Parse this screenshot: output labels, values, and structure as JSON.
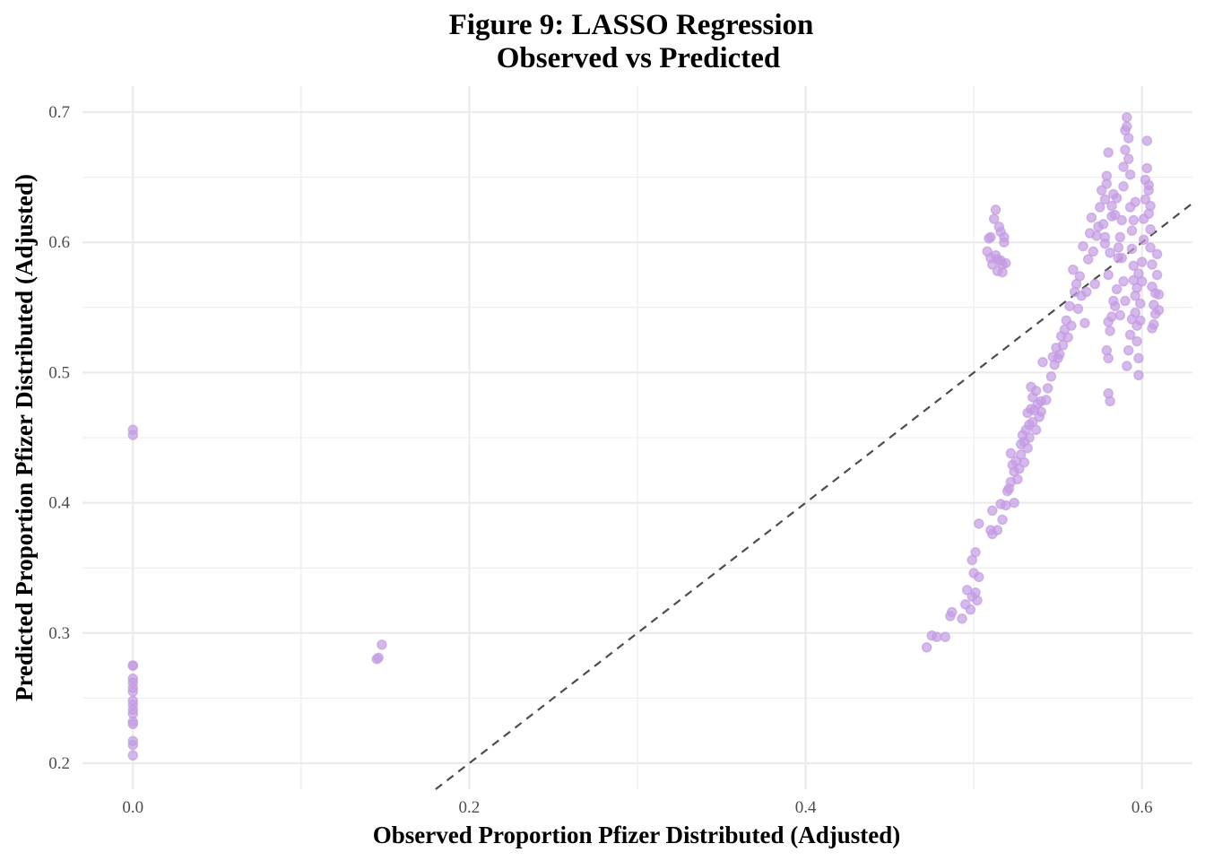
{
  "chart_data": {
    "type": "scatter",
    "title": "Figure 9: LASSO Regression",
    "subtitle": "Observed vs Predicted",
    "xlabel": "Observed Proportion Pfizer Distributed (Adjusted)",
    "ylabel": "Predicted Proportion Pfizer Distributed (Adjusted)",
    "xlim": [
      -0.03,
      0.63
    ],
    "ylim": [
      0.18,
      0.72
    ],
    "x_ticks": [
      0.0,
      0.2,
      0.4,
      0.6
    ],
    "x_tick_labels": [
      "0.0",
      "0.2",
      "0.4",
      "0.6"
    ],
    "y_ticks": [
      0.2,
      0.3,
      0.4,
      0.5,
      0.6,
      0.7
    ],
    "y_tick_labels": [
      "0.2",
      "0.3",
      "0.4",
      "0.5",
      "0.6",
      "0.7"
    ],
    "grid": true,
    "legend": "none",
    "reference_line": {
      "type": "y=x",
      "style": "dashed",
      "color": "#4d4d4d"
    },
    "point_color": "#c39be3",
    "point_opacity": 0.7,
    "points": [
      [
        0.0,
        0.456
      ],
      [
        0.0,
        0.452
      ],
      [
        0.0,
        0.275
      ],
      [
        0.0,
        0.275
      ],
      [
        0.0,
        0.265
      ],
      [
        0.0,
        0.262
      ],
      [
        0.0,
        0.258
      ],
      [
        0.0,
        0.255
      ],
      [
        0.0,
        0.248
      ],
      [
        0.0,
        0.245
      ],
      [
        0.0,
        0.241
      ],
      [
        0.0,
        0.238
      ],
      [
        0.0,
        0.232
      ],
      [
        0.0,
        0.23
      ],
      [
        0.0,
        0.217
      ],
      [
        0.0,
        0.214
      ],
      [
        0.0,
        0.206
      ],
      [
        0.145,
        0.28
      ],
      [
        0.146,
        0.281
      ],
      [
        0.148,
        0.291
      ],
      [
        0.472,
        0.289
      ],
      [
        0.475,
        0.298
      ],
      [
        0.478,
        0.297
      ],
      [
        0.483,
        0.297
      ],
      [
        0.486,
        0.313
      ],
      [
        0.487,
        0.316
      ],
      [
        0.493,
        0.311
      ],
      [
        0.495,
        0.322
      ],
      [
        0.496,
        0.333
      ],
      [
        0.498,
        0.318
      ],
      [
        0.499,
        0.328
      ],
      [
        0.5,
        0.346
      ],
      [
        0.501,
        0.331
      ],
      [
        0.502,
        0.325
      ],
      [
        0.503,
        0.343
      ],
      [
        0.499,
        0.356
      ],
      [
        0.501,
        0.362
      ],
      [
        0.503,
        0.384
      ],
      [
        0.51,
        0.379
      ],
      [
        0.511,
        0.376
      ],
      [
        0.511,
        0.394
      ],
      [
        0.514,
        0.379
      ],
      [
        0.516,
        0.399
      ],
      [
        0.517,
        0.387
      ],
      [
        0.519,
        0.398
      ],
      [
        0.52,
        0.409
      ],
      [
        0.521,
        0.411
      ],
      [
        0.522,
        0.416
      ],
      [
        0.523,
        0.429
      ],
      [
        0.524,
        0.4
      ],
      [
        0.522,
        0.438
      ],
      [
        0.524,
        0.424
      ],
      [
        0.525,
        0.432
      ],
      [
        0.526,
        0.418
      ],
      [
        0.527,
        0.426
      ],
      [
        0.528,
        0.445
      ],
      [
        0.528,
        0.437
      ],
      [
        0.529,
        0.452
      ],
      [
        0.53,
        0.431
      ],
      [
        0.53,
        0.447
      ],
      [
        0.531,
        0.456
      ],
      [
        0.532,
        0.442
      ],
      [
        0.532,
        0.469
      ],
      [
        0.533,
        0.45
      ],
      [
        0.533,
        0.46
      ],
      [
        0.534,
        0.472
      ],
      [
        0.534,
        0.489
      ],
      [
        0.535,
        0.462
      ],
      [
        0.535,
        0.481
      ],
      [
        0.536,
        0.471
      ],
      [
        0.537,
        0.456
      ],
      [
        0.537,
        0.486
      ],
      [
        0.538,
        0.476
      ],
      [
        0.539,
        0.466
      ],
      [
        0.54,
        0.478
      ],
      [
        0.54,
        0.47
      ],
      [
        0.541,
        0.508
      ],
      [
        0.543,
        0.479
      ],
      [
        0.544,
        0.488
      ],
      [
        0.546,
        0.497
      ],
      [
        0.547,
        0.512
      ],
      [
        0.548,
        0.506
      ],
      [
        0.549,
        0.519
      ],
      [
        0.55,
        0.511
      ],
      [
        0.551,
        0.514
      ],
      [
        0.552,
        0.528
      ],
      [
        0.553,
        0.521
      ],
      [
        0.554,
        0.533
      ],
      [
        0.555,
        0.54
      ],
      [
        0.556,
        0.527
      ],
      [
        0.557,
        0.551
      ],
      [
        0.558,
        0.536
      ],
      [
        0.559,
        0.579
      ],
      [
        0.56,
        0.562
      ],
      [
        0.561,
        0.568
      ],
      [
        0.562,
        0.549
      ],
      [
        0.563,
        0.574
      ],
      [
        0.564,
        0.559
      ],
      [
        0.565,
        0.597
      ],
      [
        0.566,
        0.538
      ],
      [
        0.567,
        0.562
      ],
      [
        0.568,
        0.587
      ],
      [
        0.569,
        0.607
      ],
      [
        0.57,
        0.619
      ],
      [
        0.571,
        0.593
      ],
      [
        0.572,
        0.568
      ],
      [
        0.573,
        0.605
      ],
      [
        0.574,
        0.612
      ],
      [
        0.575,
        0.627
      ],
      [
        0.576,
        0.64
      ],
      [
        0.577,
        0.614
      ],
      [
        0.578,
        0.633
      ],
      [
        0.578,
        0.599
      ],
      [
        0.579,
        0.645
      ],
      [
        0.579,
        0.651
      ],
      [
        0.58,
        0.669
      ],
      [
        0.58,
        0.575
      ],
      [
        0.58,
        0.539
      ],
      [
        0.58,
        0.511
      ],
      [
        0.58,
        0.484
      ],
      [
        0.581,
        0.478
      ],
      [
        0.581,
        0.592
      ],
      [
        0.582,
        0.62
      ],
      [
        0.582,
        0.628
      ],
      [
        0.583,
        0.637
      ],
      [
        0.584,
        0.551
      ],
      [
        0.585,
        0.564
      ],
      [
        0.586,
        0.588
      ],
      [
        0.587,
        0.604
      ],
      [
        0.588,
        0.617
      ],
      [
        0.589,
        0.643
      ],
      [
        0.589,
        0.658
      ],
      [
        0.59,
        0.671
      ],
      [
        0.59,
        0.686
      ],
      [
        0.591,
        0.696
      ],
      [
        0.591,
        0.689
      ],
      [
        0.592,
        0.68
      ],
      [
        0.592,
        0.664
      ],
      [
        0.593,
        0.652
      ],
      [
        0.593,
        0.627
      ],
      [
        0.594,
        0.609
      ],
      [
        0.594,
        0.595
      ],
      [
        0.595,
        0.582
      ],
      [
        0.595,
        0.571
      ],
      [
        0.596,
        0.559
      ],
      [
        0.596,
        0.546
      ],
      [
        0.597,
        0.536
      ],
      [
        0.597,
        0.524
      ],
      [
        0.598,
        0.511
      ],
      [
        0.598,
        0.498
      ],
      [
        0.599,
        0.54
      ],
      [
        0.599,
        0.553
      ],
      [
        0.6,
        0.57
      ],
      [
        0.6,
        0.585
      ],
      [
        0.601,
        0.602
      ],
      [
        0.601,
        0.618
      ],
      [
        0.602,
        0.633
      ],
      [
        0.602,
        0.648
      ],
      [
        0.603,
        0.657
      ],
      [
        0.603,
        0.678
      ],
      [
        0.604,
        0.64
      ],
      [
        0.604,
        0.622
      ],
      [
        0.605,
        0.61
      ],
      [
        0.605,
        0.596
      ],
      [
        0.606,
        0.583
      ],
      [
        0.606,
        0.566
      ],
      [
        0.607,
        0.552
      ],
      [
        0.607,
        0.537
      ],
      [
        0.608,
        0.545
      ],
      [
        0.608,
        0.561
      ],
      [
        0.609,
        0.575
      ],
      [
        0.609,
        0.591
      ],
      [
        0.61,
        0.56
      ],
      [
        0.61,
        0.548
      ],
      [
        0.606,
        0.534
      ],
      [
        0.605,
        0.628
      ],
      [
        0.604,
        0.644
      ],
      [
        0.598,
        0.576
      ],
      [
        0.597,
        0.565
      ],
      [
        0.596,
        0.631
      ],
      [
        0.595,
        0.617
      ],
      [
        0.594,
        0.541
      ],
      [
        0.593,
        0.529
      ],
      [
        0.592,
        0.517
      ],
      [
        0.591,
        0.505
      ],
      [
        0.59,
        0.555
      ],
      [
        0.589,
        0.57
      ],
      [
        0.588,
        0.588
      ],
      [
        0.587,
        0.544
      ],
      [
        0.586,
        0.596
      ],
      [
        0.585,
        0.634
      ],
      [
        0.584,
        0.621
      ],
      [
        0.583,
        0.555
      ],
      [
        0.582,
        0.543
      ],
      [
        0.581,
        0.532
      ],
      [
        0.579,
        0.517
      ],
      [
        0.578,
        0.604
      ],
      [
        0.508,
        0.593
      ],
      [
        0.509,
        0.603
      ],
      [
        0.51,
        0.604
      ],
      [
        0.51,
        0.588
      ],
      [
        0.511,
        0.583
      ],
      [
        0.512,
        0.618
      ],
      [
        0.513,
        0.625
      ],
      [
        0.513,
        0.59
      ],
      [
        0.514,
        0.587
      ],
      [
        0.514,
        0.578
      ],
      [
        0.515,
        0.612
      ],
      [
        0.516,
        0.608
      ],
      [
        0.516,
        0.586
      ],
      [
        0.517,
        0.583
      ],
      [
        0.517,
        0.577
      ],
      [
        0.518,
        0.604
      ],
      [
        0.518,
        0.6
      ],
      [
        0.519,
        0.584
      ]
    ]
  }
}
